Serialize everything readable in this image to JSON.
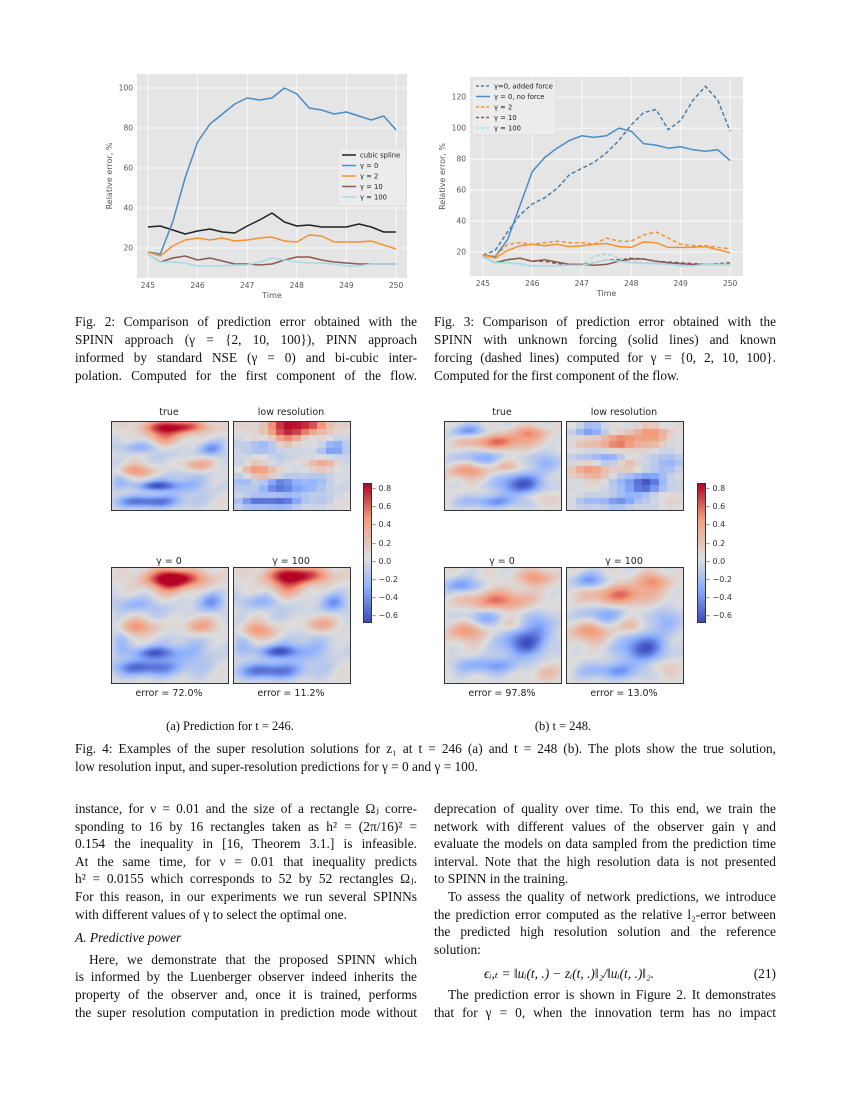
{
  "chart_data": [
    {
      "id": "fig2",
      "type": "line",
      "title": "",
      "xlabel": "Time",
      "ylabel": "Relative error, %",
      "xlim": [
        244.78,
        250.22
      ],
      "ylim": [
        5,
        107
      ],
      "xticks": [
        "245",
        "246",
        "247",
        "248",
        "249",
        "250"
      ],
      "yticks": [
        "20",
        "40",
        "60",
        "80",
        "100"
      ],
      "grid": true,
      "legend": "center-right",
      "x": [
        245,
        245.25,
        245.5,
        245.75,
        246,
        246.25,
        246.5,
        246.75,
        247,
        247.25,
        247.5,
        247.75,
        248,
        248.25,
        248.5,
        248.75,
        249,
        249.25,
        249.5,
        249.75,
        250
      ],
      "series": [
        {
          "name": "cubic spline",
          "color": "#222222",
          "dash": false,
          "values": [
            30.5,
            31,
            29,
            27,
            28.5,
            29.5,
            28,
            27.5,
            31,
            34,
            37.5,
            33,
            31,
            31.5,
            30.5,
            30.5,
            30.5,
            32,
            30.5,
            28,
            28
          ]
        },
        {
          "name": "γ = 0",
          "color": "#4a8cc4",
          "dash": false,
          "values": [
            18,
            17,
            33,
            55,
            73,
            82,
            87,
            92,
            95,
            94,
            95,
            100,
            97,
            90,
            89,
            87,
            88,
            86,
            84,
            86,
            79
          ]
        },
        {
          "name": "γ = 2",
          "color": "#f5912e",
          "dash": false,
          "values": [
            18,
            16,
            21,
            24,
            25,
            24,
            25,
            23.5,
            24,
            25,
            25.5,
            23.5,
            23,
            26.5,
            26,
            23,
            23,
            23,
            23.5,
            21.5,
            19.5
          ]
        },
        {
          "name": "γ = 10",
          "color": "#8c5a52",
          "dash": false,
          "values": [
            17,
            13,
            15,
            16,
            14,
            15,
            13.5,
            12,
            12,
            11.5,
            12,
            14,
            15.5,
            15.5,
            14,
            13,
            12.5,
            12,
            12,
            12,
            12
          ]
        },
        {
          "name": "γ = 100",
          "color": "#a6dbe6",
          "dash": false,
          "values": [
            17,
            13,
            13,
            12.5,
            11,
            11,
            11,
            11.5,
            11.5,
            13,
            15,
            14,
            13,
            12.5,
            12.5,
            12,
            11,
            11,
            12,
            12,
            12
          ]
        }
      ]
    },
    {
      "id": "fig3",
      "type": "line",
      "title": "",
      "xlabel": "Time",
      "ylabel": "Relative error, %",
      "xlim": [
        244.74,
        250.26
      ],
      "ylim": [
        4.5,
        133
      ],
      "xticks": [
        "245",
        "246",
        "247",
        "248",
        "249",
        "250"
      ],
      "yticks": [
        "20",
        "40",
        "60",
        "80",
        "100",
        "120"
      ],
      "grid": true,
      "legend": "top-left",
      "x": [
        245,
        245.25,
        245.5,
        245.75,
        246,
        246.25,
        246.5,
        246.75,
        247,
        247.25,
        247.5,
        247.75,
        248,
        248.25,
        248.5,
        248.75,
        249,
        249.25,
        249.5,
        249.75,
        250
      ],
      "series": [
        {
          "name": "γ=0, added force",
          "color": "#4a7eaa",
          "dash": true,
          "values": [
            18,
            21,
            33,
            44,
            51,
            55,
            61,
            70,
            74,
            78,
            84,
            92,
            102,
            110,
            112,
            99,
            105,
            118,
            127,
            118,
            98
          ]
        },
        {
          "name": "γ = 0, no force",
          "color": "#4a8cc4",
          "dash": false,
          "values": [
            18,
            17,
            28,
            50,
            72,
            81,
            87,
            92,
            95,
            94,
            95,
            100,
            98,
            90,
            89,
            87,
            88,
            86,
            85,
            86,
            79
          ]
        },
        {
          "name": "γ = 2",
          "color": "#f5912e",
          "dash": true,
          "values": [
            18,
            17,
            25,
            26,
            25,
            26,
            27,
            26,
            26,
            25,
            29,
            27,
            27,
            31,
            33,
            29,
            25,
            24,
            24,
            23,
            22
          ]
        },
        {
          "name": "γ = 10",
          "color": "#8c5a52",
          "dash": true,
          "values": [
            17,
            13,
            15,
            16,
            14,
            14,
            12.5,
            12,
            12,
            13,
            15,
            15,
            16,
            15.5,
            14,
            13.5,
            13,
            12.5,
            12,
            12.5,
            13
          ]
        },
        {
          "name": "γ = 100",
          "color": "#a6dbe6",
          "dash": true,
          "values": [
            17,
            13,
            13,
            12,
            11,
            11,
            11,
            12,
            12,
            17,
            19,
            16,
            14,
            13,
            13,
            12,
            12,
            12,
            12,
            12,
            12
          ]
        },
        {
          "color": "#f5912e",
          "dash": false,
          "values": [
            18,
            16,
            21,
            24,
            25,
            24,
            25,
            23.5,
            24,
            25,
            25.5,
            23.5,
            23,
            26.5,
            26,
            23,
            23,
            23,
            23.5,
            21.5,
            19.5
          ]
        },
        {
          "color": "#8c5a52",
          "dash": false,
          "values": [
            17,
            13,
            15,
            16,
            14,
            15,
            13.5,
            12,
            12,
            11.5,
            12,
            14,
            15.5,
            15.5,
            14,
            13,
            12.5,
            12,
            12,
            12,
            12
          ]
        },
        {
          "color": "#a6dbe6",
          "dash": false,
          "values": [
            17,
            13,
            13,
            12.5,
            11,
            11,
            11,
            11.5,
            11.5,
            13,
            15,
            14,
            13,
            12.5,
            12.5,
            12,
            11,
            11,
            12,
            12,
            12
          ]
        }
      ]
    }
  ],
  "fig2_caption": [
    "Fig. 2: Comparison of prediction error obtained with the",
    "SPINN approach (γ = {2, 10, 100}), PINN approach",
    "informed by standard NSE (γ = 0) and bi-cubic inter-",
    "polation. Computed for the first component of the flow."
  ],
  "fig3_caption": [
    "Fig. 3: Comparison of prediction error obtained with the",
    "SPINN with unknown forcing (solid lines) and known",
    "forcing (dashed lines) computed for γ = {0, 2, 10, 100}.",
    "Computed for the first component of the flow."
  ],
  "fig4": {
    "panel_a": {
      "titles": [
        "true",
        "low resolution",
        "γ = 0",
        "γ = 100"
      ],
      "errors": [
        "error = 72.0%",
        "error = 11.2%"
      ],
      "subcaption": "(a) Prediction for t = 246."
    },
    "panel_b": {
      "titles": [
        "true",
        "low resolution",
        "γ = 0",
        "γ = 100"
      ],
      "errors": [
        "error = 97.8%",
        "error = 13.0%"
      ],
      "subcaption": "(b) t = 248."
    },
    "colorbar_ticks": [
      "0.8",
      "0.6",
      "0.4",
      "0.2",
      "0.0",
      "−0.2",
      "−0.4",
      "−0.6"
    ],
    "colormap": "coolwarm",
    "caption": [
      "Fig. 4: Examples of the super resolution solutions for z₁ at t = 246 (a) and t = 248 (b). The plots show the true solution,",
      "low resolution input, and super-resolution predictions for γ = 0 and γ = 100."
    ]
  },
  "left_column": {
    "para1": [
      "instance, for ν = 0.01 and the size of a rectangle Ωⱼ corre-",
      "sponding to 16 by 16 rectangles taken as h² = (2π/16)² =",
      "0.154 the inequality in [16, Theorem 3.1.] is infeasible.",
      "At the same time, for ν = 0.01 that inequality predicts",
      "h² = 0.0155 which corresponds to 52 by 52 rectangles Ωⱼ.",
      "For this reason, in our experiments we run several SPINNs",
      "with different values of γ to select the optimal one."
    ],
    "section_heading": "A. Predictive power",
    "para2": [
      "Here, we demonstrate that the proposed SPINN which",
      "is informed by the Luenberger observer indeed inherits the",
      "property of the observer and, once it is trained, performs",
      "the super resolution computation in prediction mode without"
    ]
  },
  "right_column": {
    "para1": [
      "deprecation of quality over time. To this end, we train the",
      "network with different values of the observer gain γ and",
      "evaluate the models on data sampled from the prediction time",
      "interval. Note that the high resolution data is not presented",
      "to SPINN in the training."
    ],
    "para2": [
      "To assess the quality of network predictions, we introduce",
      "the prediction error computed as the relative l₂-error between",
      "the predicted high resolution solution and the reference",
      "solution:"
    ],
    "equation": "ϵᵢ,ₜ = ‖uᵢ(t, .) − zᵢ(t, .)‖₂/‖uᵢ(t, .)‖₂.",
    "equation_number": "(21)",
    "para3": [
      "The prediction error is shown in Figure 2. It demonstrates",
      "that for γ = 0, when the innovation term has no impact"
    ]
  }
}
